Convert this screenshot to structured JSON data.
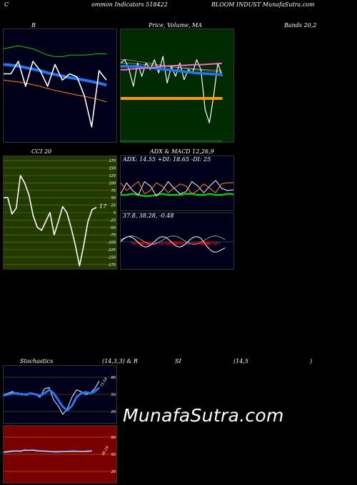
{
  "header": {
    "c": "C",
    "title": "ommon Indicators 518422",
    "company": "BLOOM INDUST MunafaSutra.com"
  },
  "labels": {
    "b": "B",
    "price": "Price, Volume, MA",
    "bands": "Bands 20,2",
    "cci": "CCI 20",
    "adx": "ADX  & MACD 12,26,9",
    "adx_values": "ADX: 14.55 +DI: 18.65 -DI: 25",
    "macd_values": "37.8,  38.28,  -0.48",
    "cci_value": "17",
    "stoch_title": "Stochastics",
    "stoch_params": "(14,3,3) & R",
    "rsi_si": "SI",
    "rsi_params": "(14,5",
    "rsi_close": ")",
    "stoch_value": "73.54",
    "rsi_value": "56.19"
  },
  "watermark": "MunafaSutra.com",
  "colors": {
    "navy": "#00001a",
    "green_panel": "#002a00",
    "olive_panel": "#203b00",
    "red_panel": "#7a0000",
    "blue": "#1e78ff",
    "orange": "#ff8800",
    "green": "#00cc00",
    "red": "#e00000"
  },
  "chart_data": [
    {
      "type": "line",
      "name": "bollinger-bands",
      "series": [
        {
          "name": "upper",
          "color": "#00cc00",
          "values": [
            70,
            70.5,
            71,
            70.5,
            70,
            69,
            68,
            67.5,
            67.5,
            68,
            68,
            68,
            68.2,
            68.5,
            68.3
          ]
        },
        {
          "name": "middle",
          "color": "#1e78ff",
          "values": [
            65,
            64.8,
            64.5,
            64,
            63.5,
            63,
            62.3,
            61.8,
            61.3,
            60.8,
            60.4,
            60,
            59.5,
            59,
            58.4
          ]
        },
        {
          "name": "lower",
          "color": "#ff8800",
          "values": [
            60,
            59.7,
            59.4,
            59,
            58.5,
            58,
            57.3,
            56.7,
            56.2,
            55.7,
            55.2,
            54.8,
            54.3,
            53.7,
            53
          ]
        },
        {
          "name": "price",
          "color": "#ffffff",
          "values": [
            62,
            62,
            66,
            58,
            66,
            63,
            58,
            65,
            60,
            62,
            61,
            55,
            45,
            63,
            60
          ]
        }
      ]
    },
    {
      "type": "line",
      "name": "price-volume-ma",
      "series": [
        {
          "name": "price",
          "color": "#ffffff",
          "values": [
            62,
            63,
            60,
            55,
            62,
            58,
            62,
            60,
            63,
            59,
            64,
            56,
            61,
            58,
            62,
            57,
            60,
            59,
            63,
            60,
            48,
            44,
            52,
            62,
            58
          ]
        },
        {
          "name": "ma-blue",
          "color": "#1e78ff",
          "values": [
            61,
            61,
            61,
            61,
            60.8,
            60.6,
            60.5,
            60.3,
            60.1,
            60,
            59.8,
            59.6,
            59.4,
            59.2,
            59,
            58.9,
            58.8,
            58.7,
            58.6,
            58.5
          ]
        },
        {
          "name": "ma-pink",
          "color": "#ff66cc",
          "values": [
            60,
            60,
            60.2,
            60.3,
            60.4,
            60.5,
            60.6,
            60.8,
            61,
            61.1,
            61.2,
            61.3,
            61.3,
            61.4,
            61.5,
            61.5,
            61.6,
            61.7,
            61.8,
            61.9
          ]
        },
        {
          "name": "volume",
          "color": "#ff9900",
          "values": [
            1,
            1,
            1,
            1,
            1,
            1,
            1,
            1,
            1,
            1,
            1,
            1,
            1,
            1,
            1,
            1,
            1,
            1,
            1,
            1
          ]
        }
      ]
    },
    {
      "type": "line",
      "name": "cci",
      "ylim": [
        -175,
        175
      ],
      "yticks": [
        175,
        150,
        125,
        100,
        75,
        50,
        25,
        0,
        -25,
        -50,
        -75,
        -100,
        -125,
        -150,
        -175
      ],
      "values": [
        50,
        50,
        -5,
        15,
        125,
        100,
        60,
        -10,
        -50,
        -60,
        -30,
        0,
        -75,
        -30,
        20,
        0,
        -50,
        -110,
        -180,
        -110,
        -30,
        10,
        17
      ]
    },
    {
      "type": "line",
      "name": "adx",
      "series": [
        {
          "name": "adx",
          "color": "#00cc00",
          "values": [
            14,
            14,
            15,
            14,
            13,
            13,
            14,
            15,
            14,
            14,
            14,
            15,
            15,
            14,
            14,
            15,
            14,
            14,
            15,
            14.55
          ]
        },
        {
          "name": "+di",
          "color": "#ffffff",
          "values": [
            15,
            25,
            18,
            14,
            26,
            22,
            13,
            18,
            26,
            20,
            15,
            17,
            26,
            22,
            16,
            22,
            27,
            20,
            18,
            18.65
          ]
        },
        {
          "name": "-di",
          "color": "#ff8800",
          "values": [
            25,
            18,
            22,
            26,
            15,
            18,
            25,
            22,
            16,
            20,
            24,
            22,
            15,
            18,
            24,
            20,
            16,
            24,
            25,
            25
          ]
        }
      ]
    },
    {
      "type": "bar",
      "name": "macd",
      "macd": 37.8,
      "signal": 38.28,
      "histogram": -0.48
    },
    {
      "type": "line",
      "name": "stochastics",
      "yticks": [
        80,
        50,
        20
      ],
      "series": [
        {
          "name": "%K",
          "color": "#ffffff",
          "values": [
            50,
            52,
            55,
            50,
            52,
            48,
            53,
            50,
            45,
            60,
            62,
            40,
            30,
            15,
            25,
            45,
            58,
            55,
            50,
            52,
            60,
            73.54
          ]
        },
        {
          "name": "%D",
          "color": "#1e78ff",
          "values": [
            48,
            50,
            52,
            52,
            50,
            50,
            52,
            50,
            48,
            52,
            58,
            52,
            40,
            28,
            22,
            30,
            45,
            52,
            54,
            52,
            55,
            62
          ]
        }
      ]
    },
    {
      "type": "line",
      "name": "rsi",
      "yticks": [
        80,
        50,
        20
      ],
      "series": [
        {
          "name": "rsi",
          "color": "#1e78ff",
          "values": [
            53,
            54,
            55,
            56,
            55,
            58,
            57,
            58,
            57,
            56,
            55,
            55,
            54,
            54,
            55,
            55,
            56,
            56,
            55,
            55,
            56,
            56.19
          ]
        },
        {
          "name": "mrsi",
          "color": "#ffffff",
          "values": [
            54,
            55,
            56,
            56,
            56,
            57,
            57,
            57,
            56,
            56,
            56,
            55,
            55,
            55,
            55,
            55,
            55,
            55,
            55,
            55,
            55,
            56
          ]
        }
      ]
    }
  ]
}
